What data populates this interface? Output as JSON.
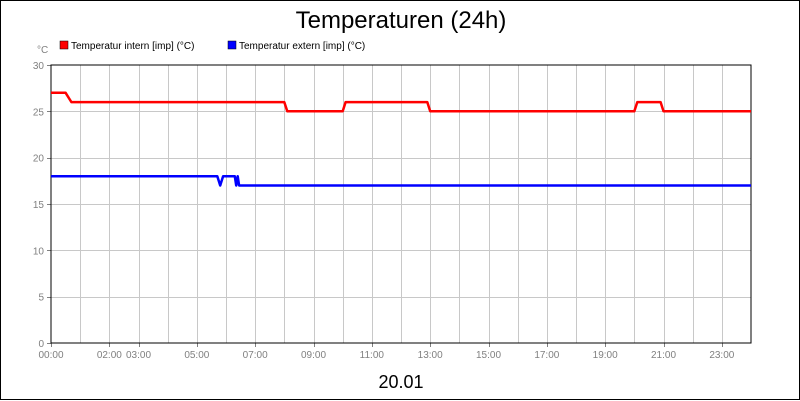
{
  "chart_data": {
    "type": "line",
    "title": "Temperaturen (24h)",
    "ylabel": "°C",
    "xlabel": "20.01",
    "ylim": [
      0,
      30
    ],
    "yticks": [
      0,
      5,
      10,
      15,
      20,
      25,
      30
    ],
    "xlim_hours": [
      0,
      24
    ],
    "xticks": [
      {
        "h": 0,
        "label": "00:00"
      },
      {
        "h": 2,
        "label": "02:00"
      },
      {
        "h": 3,
        "label": "03:00"
      },
      {
        "h": 5,
        "label": "05:00"
      },
      {
        "h": 7,
        "label": "07:00"
      },
      {
        "h": 9,
        "label": "09:00"
      },
      {
        "h": 11,
        "label": "11:00"
      },
      {
        "h": 13,
        "label": "13:00"
      },
      {
        "h": 15,
        "label": "15:00"
      },
      {
        "h": 17,
        "label": "17:00"
      },
      {
        "h": 19,
        "label": "19:00"
      },
      {
        "h": 21,
        "label": "21:00"
      },
      {
        "h": 23,
        "label": "23:00"
      }
    ],
    "grid": true,
    "legend_position": "top-left",
    "series": [
      {
        "name": "Temperatur intern [imp] (°C)",
        "color": "#ff0000",
        "x_hours": [
          0.0,
          0.5,
          0.7,
          8.0,
          8.1,
          10.0,
          10.1,
          12.9,
          13.0,
          20.0,
          20.1,
          20.9,
          21.0,
          24.0
        ],
        "values": [
          27,
          27,
          26,
          26,
          25,
          25,
          26,
          26,
          25,
          25,
          26,
          26,
          25,
          25
        ]
      },
      {
        "name": "Temperatur extern [imp] (°C)",
        "color": "#0000ff",
        "x_hours": [
          0.0,
          5.7,
          5.8,
          5.9,
          6.3,
          6.35,
          6.4,
          6.45,
          6.5,
          24.0
        ],
        "values": [
          18,
          18,
          17,
          18,
          18,
          17,
          18,
          17,
          17,
          17
        ]
      }
    ]
  }
}
